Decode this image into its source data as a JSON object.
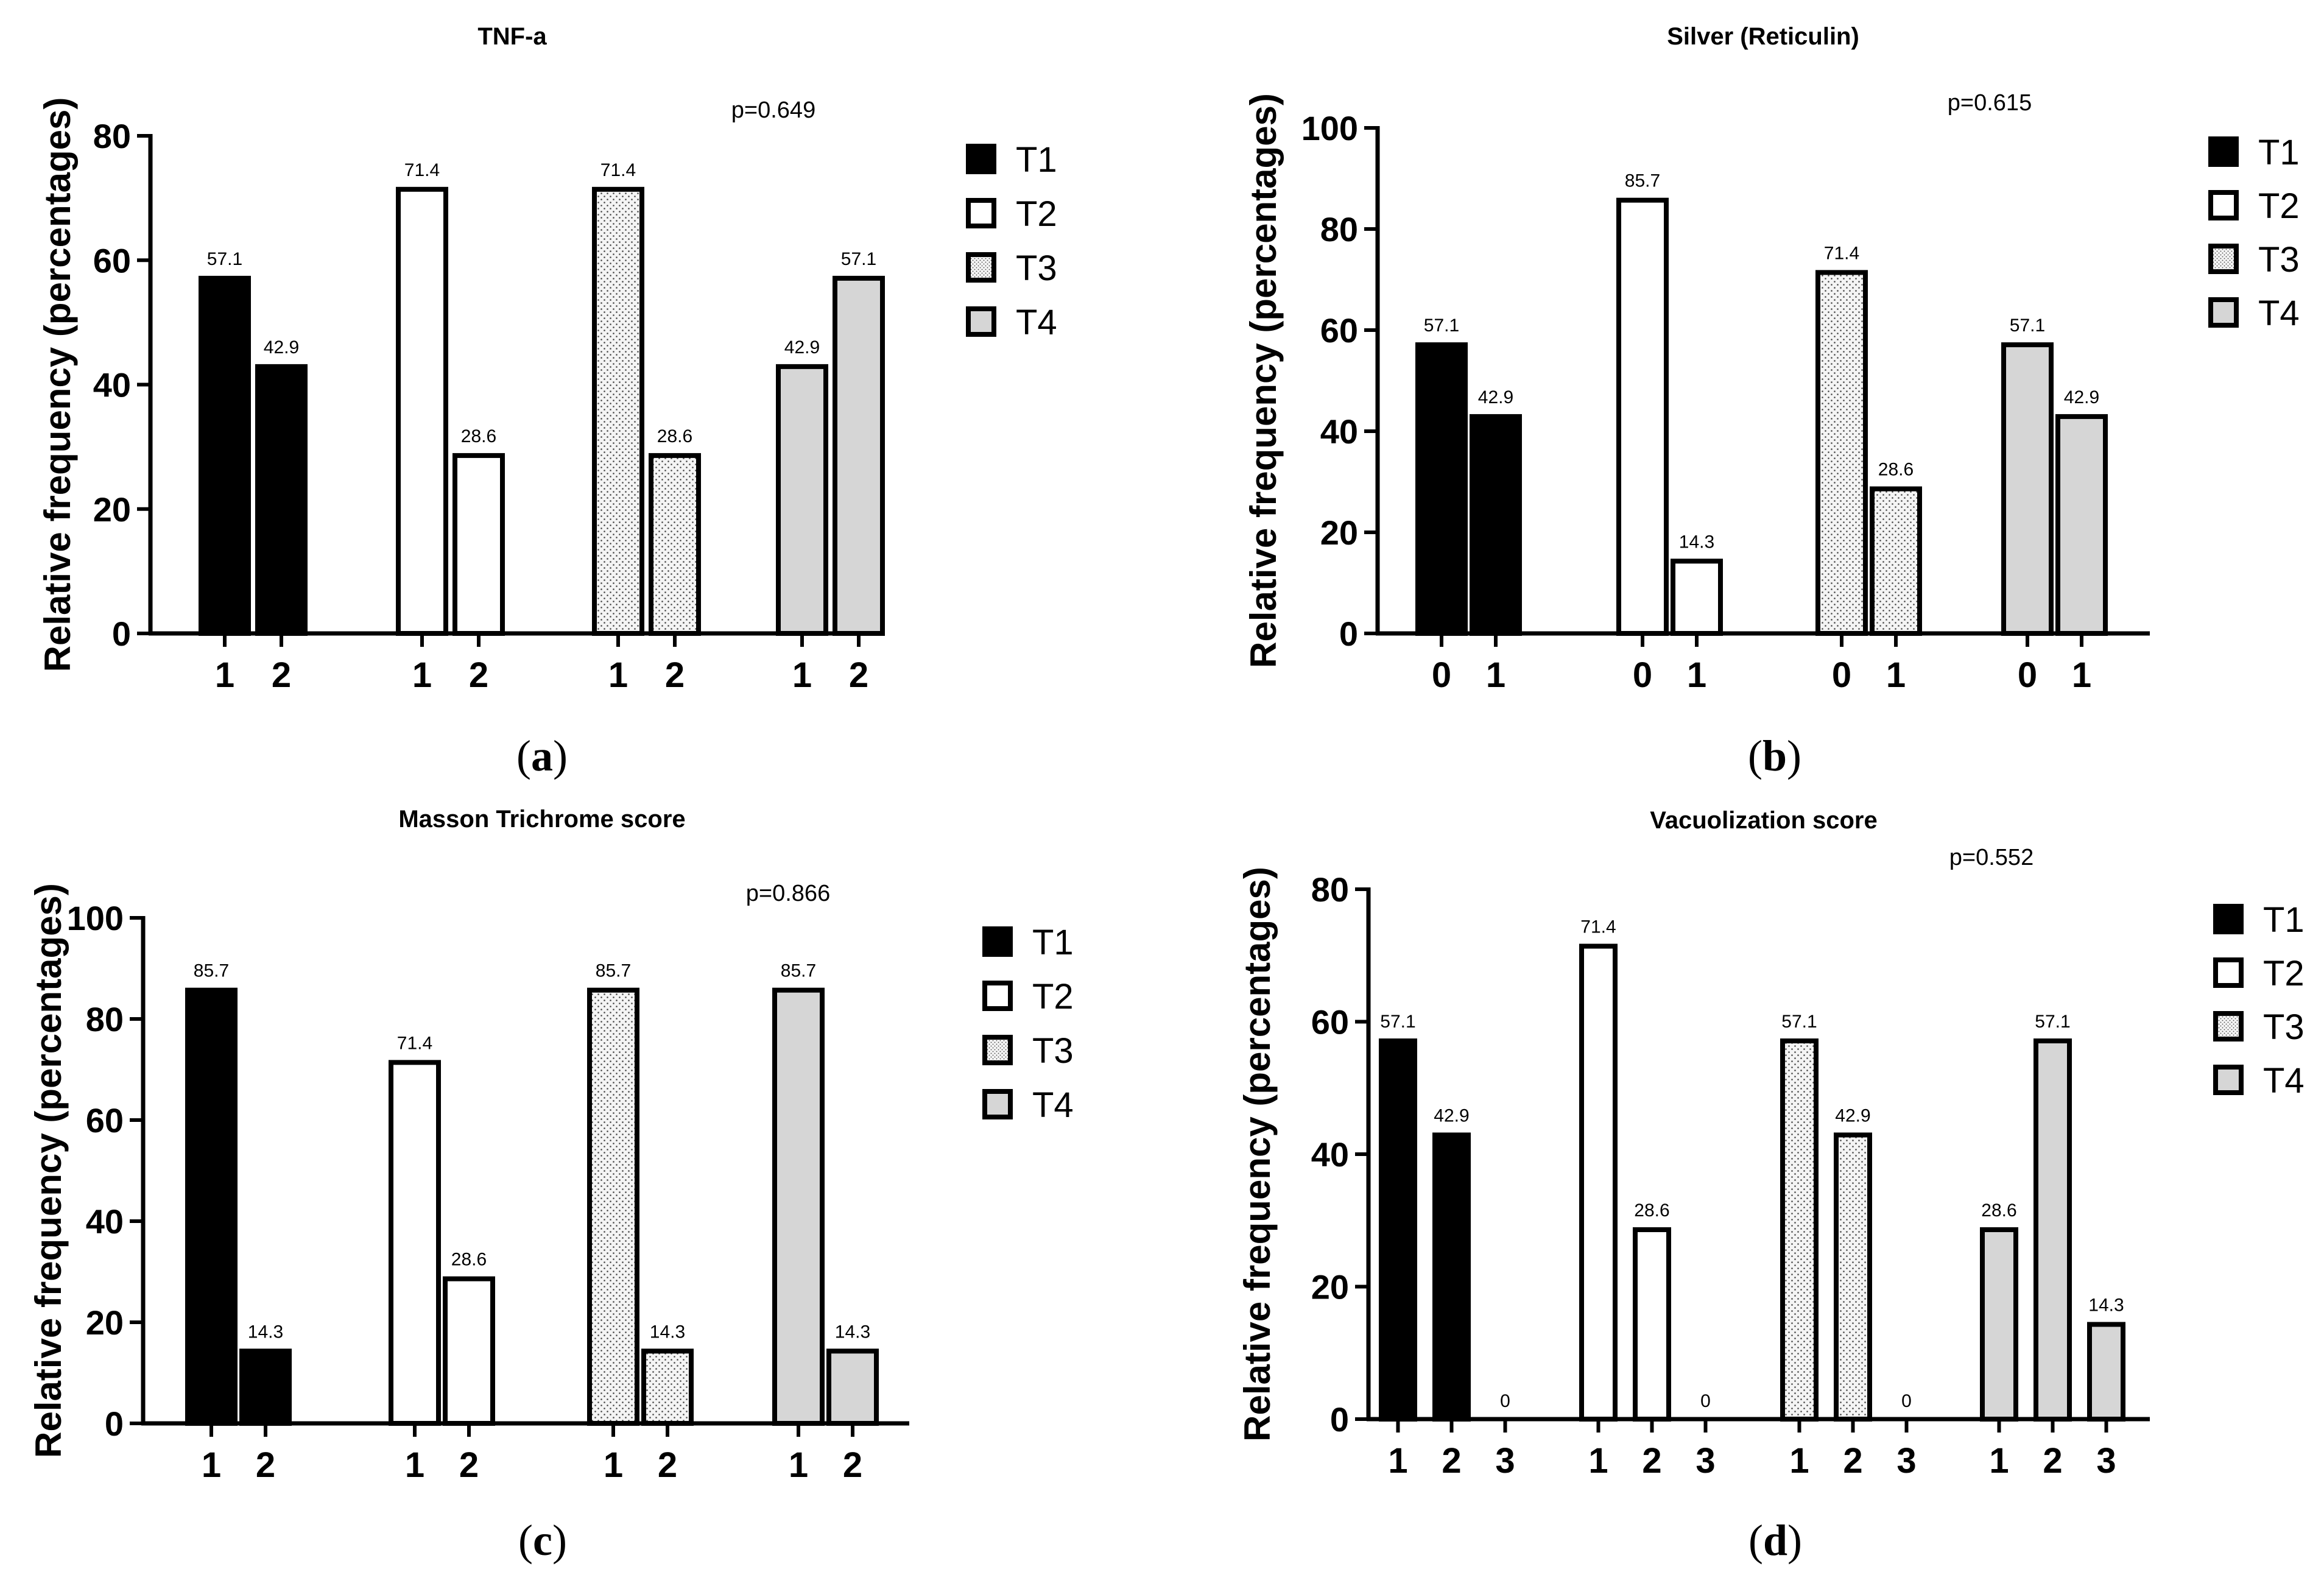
{
  "colors": {
    "T1": "#000000",
    "T2": "#ffffff",
    "T3": "#f2f2f2",
    "T4": "#d6d6d6",
    "stroke": "#000000"
  },
  "chart_data": [
    {
      "id": "a",
      "type": "bar",
      "title": "TNF-a",
      "caption": "(a)",
      "caption_letter": "a",
      "p_value": "p=0.649",
      "ylabel": "Relative frequency (percentages)",
      "ylim": [
        0,
        80
      ],
      "yticks": [
        0,
        20,
        40,
        60,
        80
      ],
      "legend_position": "right",
      "groups": [
        {
          "series": "T1",
          "categories": [
            "1",
            "2"
          ],
          "values": [
            57.1,
            42.9
          ],
          "labels": [
            "57.1",
            "42.9"
          ]
        },
        {
          "series": "T2",
          "categories": [
            "1",
            "2"
          ],
          "values": [
            71.4,
            28.6
          ],
          "labels": [
            "71.4",
            "28.6"
          ]
        },
        {
          "series": "T3",
          "categories": [
            "1",
            "2"
          ],
          "values": [
            71.4,
            28.6
          ],
          "labels": [
            "71.4",
            "28.6"
          ]
        },
        {
          "series": "T4",
          "categories": [
            "1",
            "2"
          ],
          "values": [
            42.9,
            57.1
          ],
          "labels": [
            "42.9",
            "57.1"
          ]
        }
      ],
      "legend": [
        "T1",
        "T2",
        "T3",
        "T4"
      ]
    },
    {
      "id": "b",
      "type": "bar",
      "title": "Silver (Reticulin)",
      "caption": "(b)",
      "caption_letter": "b",
      "p_value": "p=0.615",
      "ylabel": "Relative frequency (percentages)",
      "ylim": [
        0,
        100
      ],
      "yticks": [
        0,
        20,
        40,
        60,
        80,
        100
      ],
      "legend_position": "right",
      "groups": [
        {
          "series": "T1",
          "categories": [
            "0",
            "1"
          ],
          "values": [
            57.1,
            42.9
          ],
          "labels": [
            "57.1",
            "42.9"
          ]
        },
        {
          "series": "T2",
          "categories": [
            "0",
            "1"
          ],
          "values": [
            85.7,
            14.3
          ],
          "labels": [
            "85.7",
            "14.3"
          ]
        },
        {
          "series": "T3",
          "categories": [
            "0",
            "1"
          ],
          "values": [
            71.4,
            28.6
          ],
          "labels": [
            "71.4",
            "28.6"
          ]
        },
        {
          "series": "T4",
          "categories": [
            "0",
            "1"
          ],
          "values": [
            57.1,
            42.9
          ],
          "labels": [
            "57.1",
            "42.9"
          ]
        }
      ],
      "legend": [
        "T1",
        "T2",
        "T3",
        "T4"
      ]
    },
    {
      "id": "c",
      "type": "bar",
      "title": "Masson Trichrome score",
      "caption": "(c)",
      "caption_letter": "c",
      "p_value": "p=0.866",
      "ylabel": "Relative frequency (percentages)",
      "ylim": [
        0,
        100
      ],
      "yticks": [
        0,
        20,
        40,
        60,
        80,
        100
      ],
      "legend_position": "right",
      "groups": [
        {
          "series": "T1",
          "categories": [
            "1",
            "2"
          ],
          "values": [
            85.7,
            14.3
          ],
          "labels": [
            "85.7",
            "14.3"
          ]
        },
        {
          "series": "T2",
          "categories": [
            "1",
            "2"
          ],
          "values": [
            71.4,
            28.6
          ],
          "labels": [
            "71.4",
            "28.6"
          ]
        },
        {
          "series": "T3",
          "categories": [
            "1",
            "2"
          ],
          "values": [
            85.7,
            14.3
          ],
          "labels": [
            "85.7",
            "14.3"
          ]
        },
        {
          "series": "T4",
          "categories": [
            "1",
            "2"
          ],
          "values": [
            85.7,
            14.3
          ],
          "labels": [
            "85.7",
            "14.3"
          ]
        }
      ],
      "legend": [
        "T1",
        "T2",
        "T3",
        "T4"
      ]
    },
    {
      "id": "d",
      "type": "bar",
      "title": "Vacuolization score",
      "caption": "(d)",
      "caption_letter": "d",
      "p_value": "p=0.552",
      "ylabel": "Relative frequency (percentages)",
      "ylim": [
        0,
        80
      ],
      "yticks": [
        0,
        20,
        40,
        60,
        80
      ],
      "legend_position": "right",
      "groups": [
        {
          "series": "T1",
          "categories": [
            "1",
            "2",
            "3"
          ],
          "values": [
            57.1,
            42.9,
            0
          ],
          "labels": [
            "57.1",
            "42.9",
            "0"
          ]
        },
        {
          "series": "T2",
          "categories": [
            "1",
            "2",
            "3"
          ],
          "values": [
            71.4,
            28.6,
            0
          ],
          "labels": [
            "71.4",
            "28.6",
            "0"
          ]
        },
        {
          "series": "T3",
          "categories": [
            "1",
            "2",
            "3"
          ],
          "values": [
            57.1,
            42.9,
            0
          ],
          "labels": [
            "57.1",
            "42.9",
            "0"
          ]
        },
        {
          "series": "T4",
          "categories": [
            "1",
            "2",
            "3"
          ],
          "values": [
            28.6,
            57.1,
            14.3
          ],
          "labels": [
            "28.6",
            "57.1",
            "14.3"
          ]
        }
      ],
      "legend": [
        "T1",
        "T2",
        "T3",
        "T4"
      ]
    }
  ]
}
